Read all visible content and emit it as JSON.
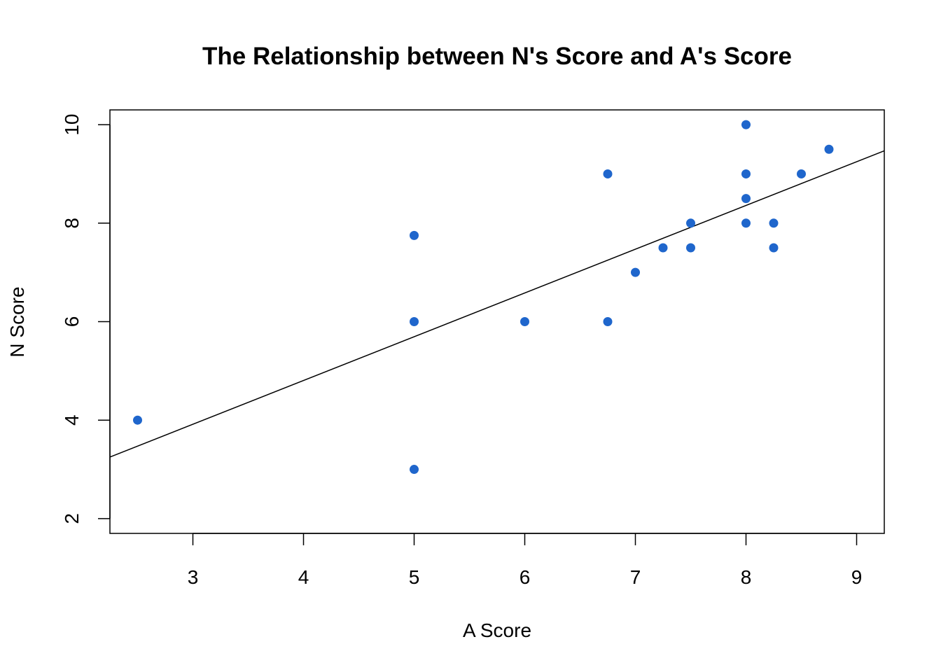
{
  "chart_data": {
    "type": "scatter",
    "title": "The Relationship between N's Score and A's Score",
    "xlabel": "A Score",
    "ylabel": "N Score",
    "xlim": [
      2.25,
      9.25
    ],
    "ylim": [
      1.7,
      10.3
    ],
    "x_ticks": [
      3,
      4,
      5,
      6,
      7,
      8,
      9
    ],
    "y_ticks": [
      2,
      4,
      6,
      8,
      10
    ],
    "grid": false,
    "point_color": "#1f66cc",
    "line_color": "#000000",
    "points": [
      {
        "x": 2.5,
        "y": 4
      },
      {
        "x": 5,
        "y": 3
      },
      {
        "x": 5,
        "y": 6
      },
      {
        "x": 5,
        "y": 7.75
      },
      {
        "x": 6,
        "y": 6
      },
      {
        "x": 6.75,
        "y": 6
      },
      {
        "x": 6.75,
        "y": 9
      },
      {
        "x": 7,
        "y": 7
      },
      {
        "x": 7.25,
        "y": 7.5
      },
      {
        "x": 7.5,
        "y": 7.5
      },
      {
        "x": 7.5,
        "y": 8
      },
      {
        "x": 8,
        "y": 8
      },
      {
        "x": 8,
        "y": 8.5
      },
      {
        "x": 8,
        "y": 9
      },
      {
        "x": 8,
        "y": 10
      },
      {
        "x": 8.25,
        "y": 7.5
      },
      {
        "x": 8.25,
        "y": 8
      },
      {
        "x": 8.5,
        "y": 9
      },
      {
        "x": 8.75,
        "y": 9.5
      }
    ],
    "trend_line": {
      "x": [
        2.25,
        9.25
      ],
      "y": [
        3.25,
        9.47
      ]
    }
  }
}
